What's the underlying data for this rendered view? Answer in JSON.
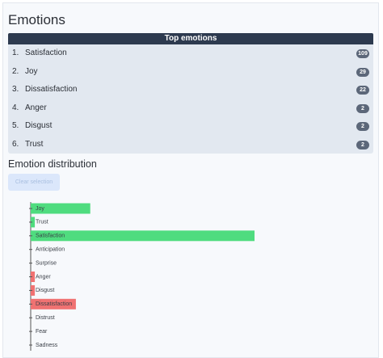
{
  "header": {
    "title": "Emotions"
  },
  "table": {
    "title": "Top emotions",
    "rows": [
      {
        "rank": "1.",
        "name": "Satisfaction",
        "count": 109
      },
      {
        "rank": "2.",
        "name": "Joy",
        "count": 29
      },
      {
        "rank": "3.",
        "name": "Dissatisfaction",
        "count": 22
      },
      {
        "rank": "4.",
        "name": "Anger",
        "count": 2
      },
      {
        "rank": "5.",
        "name": "Disgust",
        "count": 2
      },
      {
        "rank": "6.",
        "name": "Trust",
        "count": 2
      }
    ]
  },
  "section": {
    "title": "Emotion distribution",
    "button": "Clear selection"
  },
  "chart_data": {
    "type": "hbar",
    "categories": [
      "Joy",
      "Trust",
      "Satisfaction",
      "Anticipation",
      "Surprise",
      "Anger",
      "Disgust",
      "Dissatisfaction",
      "Distrust",
      "Fear",
      "Sadness"
    ],
    "values": [
      29,
      2,
      109,
      0,
      0,
      2,
      2,
      22,
      0,
      0,
      0
    ],
    "colors": [
      "#4fdc7f",
      "#4fdc7f",
      "#4fdc7f",
      "#4fdc7f",
      "#4fdc7f",
      "#f07272",
      "#f07272",
      "#f07272",
      "#f07272",
      "#f07272",
      "#f07272"
    ]
  }
}
